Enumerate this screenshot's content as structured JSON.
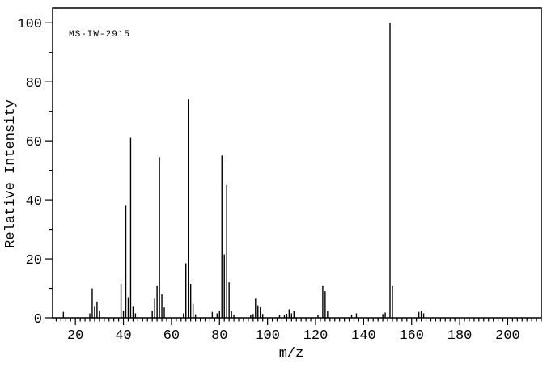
{
  "chart_data": {
    "type": "bar",
    "subtype": "mass-spectrum",
    "title": "MS-IW-2915",
    "xlabel": "m/z",
    "ylabel": "Relative Intensity",
    "xlim": [
      10.5,
      214
    ],
    "ylim": [
      0,
      105
    ],
    "x_major_ticks": [
      20,
      40,
      60,
      80,
      100,
      120,
      140,
      160,
      180,
      200
    ],
    "x_minor_step": 2,
    "y_major_ticks": [
      0,
      20,
      40,
      60,
      80,
      100
    ],
    "y_minor_step": 10,
    "grid": false,
    "legend": "none",
    "line_color": "#000000",
    "background_color": "#ffffff",
    "peaks": [
      [
        15,
        2
      ],
      [
        26,
        1.5
      ],
      [
        27,
        10
      ],
      [
        28,
        4
      ],
      [
        29,
        5.5
      ],
      [
        30,
        2.5
      ],
      [
        39,
        11.5
      ],
      [
        40,
        2.5
      ],
      [
        41,
        38
      ],
      [
        42,
        7
      ],
      [
        43,
        61
      ],
      [
        44,
        4
      ],
      [
        45,
        1.5
      ],
      [
        52,
        2.5
      ],
      [
        53,
        6.5
      ],
      [
        54,
        11
      ],
      [
        55,
        54.5
      ],
      [
        56,
        8
      ],
      [
        57,
        3.5
      ],
      [
        65,
        1.5
      ],
      [
        66,
        18.5
      ],
      [
        67,
        74
      ],
      [
        68,
        11.5
      ],
      [
        69,
        4.7
      ],
      [
        70,
        1.2
      ],
      [
        77,
        2
      ],
      [
        79,
        1.5
      ],
      [
        80,
        2.5
      ],
      [
        81,
        55
      ],
      [
        82,
        21.5
      ],
      [
        83,
        45
      ],
      [
        84,
        12
      ],
      [
        85,
        2.3
      ],
      [
        86,
        1
      ],
      [
        93,
        1
      ],
      [
        94,
        1.3
      ],
      [
        95,
        6.5
      ],
      [
        96,
        4.2
      ],
      [
        97,
        3.7
      ],
      [
        98,
        1.3
      ],
      [
        105,
        1
      ],
      [
        107,
        1
      ],
      [
        108,
        1.4
      ],
      [
        109,
        2.9
      ],
      [
        110,
        1.5
      ],
      [
        111,
        2.4
      ],
      [
        121,
        1
      ],
      [
        123,
        11
      ],
      [
        124,
        9
      ],
      [
        125,
        2.2
      ],
      [
        135,
        1
      ],
      [
        137,
        1.5
      ],
      [
        148,
        1.3
      ],
      [
        149,
        1.8
      ],
      [
        151,
        100
      ],
      [
        152,
        11
      ],
      [
        163,
        2
      ],
      [
        164,
        2.5
      ],
      [
        165,
        1.5
      ]
    ]
  }
}
